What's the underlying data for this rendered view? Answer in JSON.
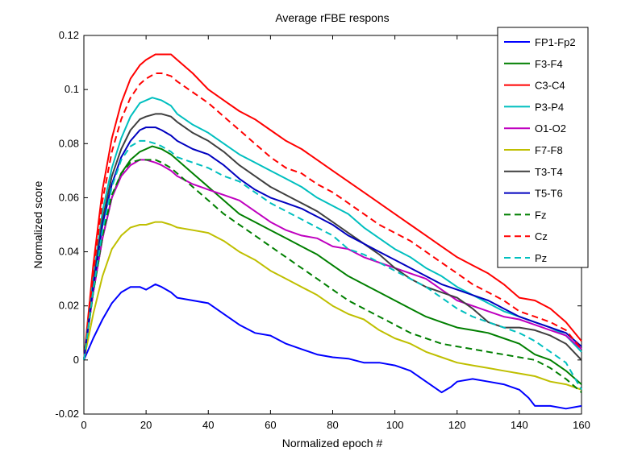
{
  "chart_data": {
    "type": "line",
    "title": "Average rFBE respons",
    "xlabel": "Normalized epoch #",
    "ylabel": "Normalized score",
    "xlim": [
      0,
      160
    ],
    "ylim": [
      -0.02,
      0.12
    ],
    "xticks": [
      0,
      20,
      40,
      60,
      80,
      100,
      120,
      140,
      160
    ],
    "xtick_labels": [
      "0",
      "20",
      "40",
      "60",
      "80",
      "100",
      "120",
      "140",
      "160"
    ],
    "yticks": [
      -0.02,
      0,
      0.02,
      0.04,
      0.06,
      0.08,
      0.1,
      0.12
    ],
    "ytick_labels": [
      "-0.02",
      "0",
      "0.02",
      "0.04",
      "0.06",
      "0.08",
      "0.1",
      "0.12"
    ],
    "grid": false,
    "legend_position": "top-right",
    "series": [
      {
        "name": "FP1-Fp2",
        "color": "#0000ff",
        "dash": "solid",
        "x": [
          0,
          3,
          6,
          9,
          12,
          15,
          18,
          20,
          23,
          25,
          28,
          30,
          35,
          40,
          45,
          50,
          55,
          60,
          65,
          70,
          75,
          80,
          85,
          90,
          95,
          100,
          105,
          110,
          115,
          118,
          120,
          125,
          130,
          135,
          140,
          143,
          145,
          150,
          155,
          160
        ],
        "y": [
          0.0,
          0.008,
          0.015,
          0.021,
          0.025,
          0.027,
          0.027,
          0.026,
          0.028,
          0.027,
          0.025,
          0.023,
          0.022,
          0.021,
          0.017,
          0.013,
          0.01,
          0.009,
          0.006,
          0.004,
          0.002,
          0.001,
          0.0005,
          -0.001,
          -0.001,
          -0.002,
          -0.004,
          -0.008,
          -0.012,
          -0.01,
          -0.008,
          -0.007,
          -0.008,
          -0.009,
          -0.011,
          -0.014,
          -0.017,
          -0.017,
          -0.018,
          -0.017
        ]
      },
      {
        "name": "F3-F4",
        "color": "#007f00",
        "dash": "solid",
        "x": [
          0,
          3,
          6,
          9,
          12,
          15,
          18,
          20,
          22,
          25,
          28,
          30,
          35,
          40,
          45,
          50,
          55,
          60,
          65,
          70,
          75,
          80,
          85,
          90,
          95,
          100,
          105,
          110,
          115,
          120,
          125,
          130,
          135,
          140,
          145,
          150,
          155,
          160
        ],
        "y": [
          0.0,
          0.025,
          0.045,
          0.06,
          0.069,
          0.074,
          0.077,
          0.078,
          0.079,
          0.078,
          0.076,
          0.074,
          0.069,
          0.064,
          0.059,
          0.054,
          0.051,
          0.048,
          0.045,
          0.042,
          0.039,
          0.035,
          0.031,
          0.028,
          0.025,
          0.022,
          0.019,
          0.016,
          0.014,
          0.012,
          0.011,
          0.01,
          0.008,
          0.006,
          0.002,
          0.0,
          -0.004,
          -0.009
        ]
      },
      {
        "name": "C3-C4",
        "color": "#ff0000",
        "dash": "solid",
        "x": [
          0,
          3,
          6,
          9,
          12,
          15,
          18,
          20,
          23,
          25,
          28,
          30,
          35,
          40,
          45,
          50,
          55,
          60,
          65,
          70,
          75,
          80,
          85,
          90,
          95,
          100,
          105,
          110,
          115,
          120,
          125,
          130,
          135,
          140,
          145,
          150,
          155,
          160
        ],
        "y": [
          0.0,
          0.035,
          0.063,
          0.082,
          0.095,
          0.104,
          0.109,
          0.111,
          0.113,
          0.113,
          0.113,
          0.111,
          0.106,
          0.1,
          0.096,
          0.092,
          0.089,
          0.085,
          0.081,
          0.078,
          0.074,
          0.07,
          0.066,
          0.062,
          0.058,
          0.054,
          0.05,
          0.046,
          0.042,
          0.038,
          0.035,
          0.032,
          0.028,
          0.023,
          0.022,
          0.019,
          0.014,
          0.007
        ]
      },
      {
        "name": "P3-P4",
        "color": "#00bfbf",
        "dash": "solid",
        "x": [
          0,
          3,
          6,
          9,
          12,
          15,
          18,
          20,
          22,
          25,
          28,
          30,
          35,
          40,
          45,
          50,
          55,
          60,
          65,
          70,
          75,
          80,
          85,
          90,
          95,
          100,
          105,
          110,
          115,
          120,
          125,
          130,
          135,
          140,
          145,
          150,
          155,
          160
        ],
        "y": [
          0.0,
          0.03,
          0.055,
          0.071,
          0.082,
          0.09,
          0.095,
          0.096,
          0.097,
          0.096,
          0.094,
          0.091,
          0.087,
          0.084,
          0.08,
          0.076,
          0.073,
          0.07,
          0.067,
          0.064,
          0.06,
          0.057,
          0.054,
          0.049,
          0.045,
          0.041,
          0.038,
          0.034,
          0.031,
          0.027,
          0.024,
          0.021,
          0.018,
          0.016,
          0.014,
          0.012,
          0.009,
          0.003
        ]
      },
      {
        "name": "O1-O2",
        "color": "#bf00bf",
        "dash": "solid",
        "x": [
          0,
          3,
          6,
          9,
          12,
          15,
          18,
          20,
          23,
          25,
          28,
          30,
          35,
          40,
          45,
          50,
          55,
          60,
          65,
          70,
          75,
          80,
          85,
          90,
          95,
          100,
          105,
          110,
          115,
          120,
          125,
          130,
          135,
          140,
          145,
          150,
          155,
          160
        ],
        "y": [
          0.0,
          0.025,
          0.045,
          0.06,
          0.068,
          0.072,
          0.074,
          0.074,
          0.073,
          0.072,
          0.07,
          0.068,
          0.065,
          0.063,
          0.061,
          0.059,
          0.055,
          0.051,
          0.048,
          0.046,
          0.045,
          0.042,
          0.041,
          0.038,
          0.036,
          0.034,
          0.032,
          0.03,
          0.026,
          0.022,
          0.02,
          0.018,
          0.016,
          0.015,
          0.013,
          0.011,
          0.009,
          0.004
        ]
      },
      {
        "name": "F7-F8",
        "color": "#bfbf00",
        "dash": "solid",
        "x": [
          0,
          3,
          6,
          9,
          12,
          15,
          18,
          20,
          23,
          25,
          28,
          30,
          35,
          40,
          45,
          50,
          55,
          60,
          65,
          70,
          75,
          80,
          85,
          90,
          95,
          100,
          105,
          110,
          115,
          120,
          125,
          130,
          135,
          140,
          145,
          150,
          155,
          160
        ],
        "y": [
          0.0,
          0.017,
          0.031,
          0.041,
          0.046,
          0.049,
          0.05,
          0.05,
          0.051,
          0.051,
          0.05,
          0.049,
          0.048,
          0.047,
          0.044,
          0.04,
          0.037,
          0.033,
          0.03,
          0.027,
          0.024,
          0.02,
          0.017,
          0.015,
          0.011,
          0.008,
          0.006,
          0.003,
          0.001,
          -0.001,
          -0.002,
          -0.003,
          -0.004,
          -0.005,
          -0.006,
          -0.008,
          -0.009,
          -0.011
        ]
      },
      {
        "name": "T3-T4",
        "color": "#3f3f3f",
        "dash": "solid",
        "x": [
          0,
          3,
          6,
          9,
          12,
          15,
          18,
          20,
          23,
          25,
          28,
          30,
          35,
          40,
          45,
          50,
          55,
          60,
          65,
          70,
          75,
          80,
          85,
          90,
          95,
          100,
          105,
          110,
          115,
          120,
          125,
          130,
          135,
          140,
          145,
          150,
          155,
          160
        ],
        "y": [
          0.0,
          0.028,
          0.052,
          0.068,
          0.078,
          0.085,
          0.089,
          0.09,
          0.091,
          0.091,
          0.09,
          0.088,
          0.084,
          0.081,
          0.077,
          0.072,
          0.068,
          0.064,
          0.061,
          0.058,
          0.055,
          0.051,
          0.047,
          0.043,
          0.039,
          0.034,
          0.03,
          0.027,
          0.025,
          0.023,
          0.019,
          0.014,
          0.012,
          0.012,
          0.011,
          0.009,
          0.006,
          0.0
        ]
      },
      {
        "name": "T5-T6",
        "color": "#0000bf",
        "dash": "solid",
        "x": [
          0,
          3,
          6,
          9,
          12,
          15,
          18,
          20,
          23,
          25,
          28,
          30,
          35,
          40,
          45,
          50,
          55,
          60,
          65,
          70,
          75,
          80,
          85,
          90,
          95,
          100,
          105,
          110,
          115,
          120,
          125,
          130,
          135,
          140,
          145,
          150,
          155,
          160
        ],
        "y": [
          0.0,
          0.027,
          0.05,
          0.065,
          0.075,
          0.081,
          0.085,
          0.086,
          0.086,
          0.085,
          0.083,
          0.081,
          0.078,
          0.076,
          0.072,
          0.067,
          0.063,
          0.06,
          0.058,
          0.056,
          0.053,
          0.05,
          0.046,
          0.043,
          0.04,
          0.037,
          0.034,
          0.031,
          0.028,
          0.026,
          0.024,
          0.022,
          0.019,
          0.016,
          0.014,
          0.012,
          0.01,
          0.005
        ]
      },
      {
        "name": "Fz",
        "color": "#007f00",
        "dash": "dashed",
        "x": [
          0,
          3,
          6,
          9,
          12,
          15,
          18,
          20,
          23,
          25,
          28,
          30,
          35,
          40,
          45,
          50,
          55,
          60,
          65,
          70,
          75,
          80,
          85,
          90,
          95,
          100,
          105,
          110,
          115,
          120,
          125,
          130,
          135,
          140,
          145,
          150,
          155,
          160
        ],
        "y": [
          0.0,
          0.025,
          0.046,
          0.061,
          0.069,
          0.073,
          0.074,
          0.074,
          0.074,
          0.073,
          0.071,
          0.069,
          0.064,
          0.059,
          0.054,
          0.05,
          0.046,
          0.042,
          0.038,
          0.034,
          0.03,
          0.026,
          0.022,
          0.019,
          0.016,
          0.013,
          0.01,
          0.008,
          0.006,
          0.005,
          0.004,
          0.003,
          0.002,
          0.001,
          0.0,
          -0.003,
          -0.007,
          -0.012
        ]
      },
      {
        "name": "Cz",
        "color": "#ff0000",
        "dash": "dashed",
        "x": [
          0,
          3,
          6,
          9,
          12,
          15,
          18,
          20,
          23,
          25,
          28,
          30,
          35,
          40,
          45,
          50,
          55,
          60,
          65,
          70,
          75,
          80,
          85,
          90,
          95,
          100,
          105,
          110,
          115,
          120,
          125,
          130,
          135,
          140,
          145,
          150,
          155,
          160
        ],
        "y": [
          0.0,
          0.032,
          0.059,
          0.077,
          0.089,
          0.097,
          0.102,
          0.104,
          0.106,
          0.106,
          0.105,
          0.103,
          0.099,
          0.095,
          0.09,
          0.085,
          0.08,
          0.075,
          0.071,
          0.069,
          0.065,
          0.062,
          0.058,
          0.054,
          0.05,
          0.047,
          0.044,
          0.04,
          0.036,
          0.032,
          0.028,
          0.025,
          0.022,
          0.018,
          0.016,
          0.014,
          0.011,
          0.004
        ]
      },
      {
        "name": "Pz",
        "color": "#00bfbf",
        "dash": "dashed",
        "x": [
          0,
          3,
          6,
          9,
          12,
          15,
          18,
          20,
          23,
          25,
          28,
          30,
          35,
          40,
          45,
          50,
          55,
          60,
          65,
          70,
          75,
          80,
          85,
          90,
          95,
          100,
          105,
          110,
          115,
          120,
          125,
          130,
          135,
          140,
          145,
          150,
          155,
          160
        ],
        "y": [
          0.0,
          0.026,
          0.048,
          0.064,
          0.074,
          0.079,
          0.081,
          0.081,
          0.08,
          0.079,
          0.077,
          0.075,
          0.073,
          0.071,
          0.068,
          0.066,
          0.062,
          0.058,
          0.055,
          0.052,
          0.049,
          0.046,
          0.041,
          0.039,
          0.036,
          0.033,
          0.03,
          0.027,
          0.023,
          0.019,
          0.016,
          0.014,
          0.012,
          0.01,
          0.007,
          0.003,
          -0.001,
          -0.011
        ]
      }
    ]
  }
}
